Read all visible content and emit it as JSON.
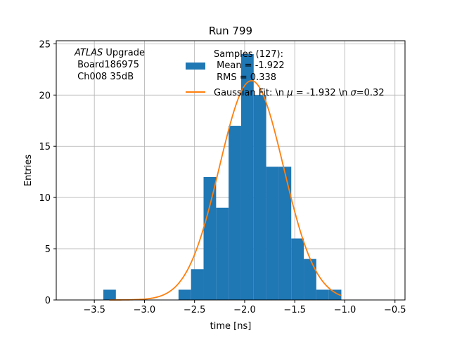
{
  "chart_data": {
    "type": "bar",
    "title": "Run 799",
    "xlabel": "time [ns]",
    "ylabel": "Entries",
    "xlim": [
      -3.88,
      -0.4
    ],
    "ylim": [
      0,
      25.3
    ],
    "x_ticks": [
      -3.5,
      -3.0,
      -2.5,
      -2.0,
      -1.5,
      -1.0,
      -0.5
    ],
    "x_tick_labels": [
      "−3.5",
      "−3.0",
      "−2.5",
      "−2.0",
      "−1.5",
      "−1.0",
      "−0.5"
    ],
    "y_ticks": [
      0,
      5,
      10,
      15,
      20,
      25
    ],
    "y_tick_labels": [
      "0",
      "5",
      "10",
      "15",
      "20",
      "25"
    ],
    "grid": true,
    "legend_position": "top-right",
    "annotation": {
      "lines": [
        "ATLAS Upgrade",
        " Board186975",
        " Ch008 35dB"
      ],
      "italic_word": "ATLAS",
      "rest_of_first_line": " Upgrade"
    },
    "histogram": {
      "legend_lines": [
        "Samples (127):",
        " Mean = -1.922",
        " RMS = 0.338"
      ],
      "color": "#1f77b4",
      "bin_edges": [
        -3.41,
        -3.285,
        -3.16,
        -3.035,
        -2.91,
        -2.785,
        -2.66,
        -2.535,
        -2.41,
        -2.285,
        -2.16,
        -2.035,
        -1.91,
        -1.785,
        -1.66,
        -1.535,
        -1.41,
        -1.285,
        -1.16,
        -1.035,
        -0.91
      ],
      "counts": [
        1,
        0,
        0,
        0,
        0,
        0,
        1,
        3,
        12,
        9,
        17,
        24,
        20,
        13,
        13,
        6,
        4,
        1,
        1,
        0
      ]
    },
    "fit": {
      "legend_label": "Gaussian Fit: \\n μ = -1.932 \\n σ=0.32",
      "label_parts": [
        "Gaussian Fit: \\n ",
        "μ",
        " = -1.932 \\n ",
        "σ",
        "=0.32"
      ],
      "color": "#ff7f0e",
      "mu": -1.932,
      "sigma": 0.32,
      "amplitude": 21.4,
      "x_range": [
        -3.35,
        -1.04
      ]
    }
  }
}
